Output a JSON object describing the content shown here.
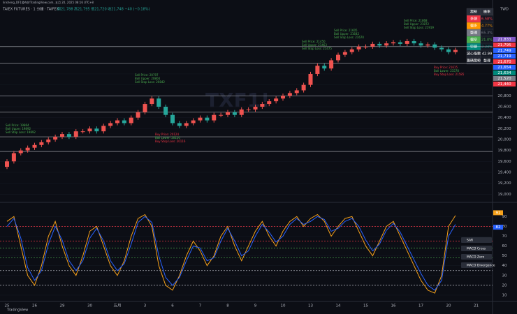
{
  "header": {
    "publisher": "linsheng_DF1發布於TradingView.com, 五月 20, 2025 08:16 UTC+8",
    "symbol": "TAIEX FUTURES · 1 分鐘 · TAIFEX",
    "ohlc": "開21,788 高21,795 低21,720 收21,748 −40 (−0.18%)",
    "currency": "TWD",
    "watermark": "TXF1!",
    "footer": "TradingView"
  },
  "table": {
    "header": [
      "趨勢",
      "機率"
    ],
    "rows": [
      [
        "多頭",
        "6.58%"
      ],
      [
        "偏多",
        "4.77%"
      ],
      [
        "整理",
        "65.3%"
      ],
      [
        "偏空",
        "21.0%"
      ],
      [
        "空頭",
        "2.24%"
      ],
      [
        "波心指數",
        "42.99"
      ],
      [
        "籌碼趨勢",
        "整理"
      ]
    ]
  },
  "chart_data": [
    {
      "type": "candlestick",
      "up_color": "#ef5350",
      "down_color": "#26a69a",
      "categories": [
        "25",
        null,
        null,
        null,
        "26",
        null,
        null,
        null,
        "29",
        null,
        null,
        null,
        "30",
        null,
        null,
        null,
        "五月",
        null,
        null,
        null,
        "3",
        null,
        null,
        null,
        "6",
        null,
        null,
        null,
        "7",
        null,
        null,
        null,
        "8",
        null,
        null,
        null,
        "9",
        null,
        null,
        null,
        "10",
        null,
        null,
        null,
        "13",
        null,
        null,
        null,
        "14",
        null,
        null,
        null,
        "15",
        null,
        null,
        null,
        "16",
        null,
        null,
        null,
        "17",
        null,
        null,
        null,
        "20",
        null,
        null,
        null,
        "21"
      ],
      "open": [
        19500,
        19600,
        19750,
        19800,
        19850,
        19900,
        19950,
        20000,
        20050,
        20100,
        20050,
        20150,
        20150,
        20200,
        20150,
        20250,
        20300,
        20350,
        20300,
        20400,
        20500,
        20650,
        20750,
        20600,
        20450,
        20300,
        20250,
        20300,
        20350,
        20400,
        20350,
        20450,
        20450,
        20500,
        20450,
        20550,
        20550,
        20600,
        20650,
        20700,
        20750,
        20800,
        20850,
        20900,
        21000,
        21200,
        21350,
        21300,
        21450,
        21550,
        21600,
        21650,
        21700,
        21700,
        21750,
        21720,
        21760,
        21780,
        21750,
        21800,
        21760,
        21720,
        21740,
        21680,
        21650,
        21600,
        null,
        null,
        null
      ],
      "high": [
        19640,
        19790,
        19840,
        19890,
        19940,
        19990,
        20040,
        20090,
        20140,
        20140,
        20190,
        20190,
        20240,
        20240,
        20290,
        20340,
        20390,
        20390,
        20440,
        20540,
        20690,
        20790,
        20790,
        20640,
        20490,
        20340,
        20340,
        20390,
        20440,
        20440,
        20490,
        20490,
        20540,
        20540,
        20590,
        20590,
        20640,
        20690,
        20740,
        20790,
        20840,
        20890,
        20940,
        21040,
        21240,
        21390,
        21390,
        21490,
        21590,
        21640,
        21690,
        21740,
        21740,
        21790,
        21790,
        21800,
        21820,
        21820,
        21840,
        21840,
        21800,
        21780,
        21780,
        21720,
        21690,
        21680,
        null,
        null,
        null
      ],
      "low": [
        19460,
        19560,
        19710,
        19760,
        19810,
        19860,
        19910,
        19960,
        20010,
        20010,
        20010,
        20110,
        20110,
        20110,
        20110,
        20210,
        20260,
        20260,
        20260,
        20360,
        20460,
        20610,
        20560,
        20410,
        20260,
        20210,
        20210,
        20260,
        20310,
        20310,
        20310,
        20410,
        20410,
        20410,
        20410,
        20510,
        20510,
        20560,
        20610,
        20660,
        20710,
        20760,
        20810,
        20860,
        20960,
        21160,
        21260,
        21260,
        21410,
        21510,
        21560,
        21610,
        21660,
        21660,
        21680,
        21680,
        21720,
        21710,
        21710,
        21720,
        21680,
        21680,
        21640,
        21610,
        21560,
        21560,
        null,
        null,
        null
      ],
      "close": [
        19600,
        19750,
        19800,
        19850,
        19900,
        19950,
        20000,
        20050,
        20100,
        20050,
        20150,
        20150,
        20200,
        20150,
        20250,
        20300,
        20350,
        20300,
        20400,
        20500,
        20650,
        20750,
        20600,
        20450,
        20300,
        20250,
        20300,
        20350,
        20400,
        20350,
        20450,
        20450,
        20500,
        20450,
        20550,
        20550,
        20600,
        20650,
        20700,
        20750,
        20800,
        20850,
        20900,
        21000,
        21200,
        21350,
        21300,
        21450,
        21550,
        21600,
        21650,
        21700,
        21700,
        21750,
        21720,
        21760,
        21780,
        21750,
        21800,
        21760,
        21720,
        21740,
        21680,
        21650,
        21600,
        21640,
        null,
        null,
        null
      ],
      "ylim": [
        18850,
        22400
      ],
      "yticks": [
        {
          "value": 19000,
          "label": "19,000"
        },
        {
          "value": 19200,
          "label": "19,200"
        },
        {
          "value": 19400,
          "label": "19,400"
        },
        {
          "value": 19600,
          "label": "19,600"
        },
        {
          "value": 19800,
          "label": "19,800"
        },
        {
          "value": 20000,
          "label": "20,000"
        },
        {
          "value": 20200,
          "label": "20,200"
        },
        {
          "value": 20400,
          "label": "20,400"
        },
        {
          "value": 20600,
          "label": "20,600"
        },
        {
          "value": 20800,
          "label": "20,800"
        },
        {
          "value": 21000,
          "label": "21,000"
        },
        {
          "value": 21200,
          "label": "21,200"
        },
        {
          "value": 21400,
          "label": "21,400"
        }
      ],
      "levels": [
        21700,
        21400,
        20800,
        20500,
        20050,
        19780
      ],
      "price_tags": [
        {
          "value": 21833,
          "label": "21,833",
          "color": "#7e57c2"
        },
        {
          "value": 21795,
          "label": "21,795",
          "color": "#f23645"
        },
        {
          "value": 21749,
          "label": "21,749",
          "color": "#2962ff"
        },
        {
          "value": 21719,
          "label": "21,719",
          "color": "#2962ff"
        },
        {
          "value": 21670,
          "label": "21,670",
          "color": "#f23645"
        },
        {
          "value": 21654,
          "label": "21,654",
          "color": "#2962ff"
        },
        {
          "value": 21634,
          "label": "21,634",
          "color": "#00897b"
        },
        {
          "value": 21520,
          "label": "21,520",
          "color": "#787b86"
        },
        {
          "value": 21440,
          "label": "21,440",
          "color": "#f23645"
        }
      ],
      "annotations": [
        [
          "Sell Price: 19864",
          "Boll Upper: 19892",
          "Sell Stop Loss: 19892"
        ],
        [
          "Sell Price: 20797",
          "Boll Upper: 20804",
          "Sell Stop Loss: 20842"
        ],
        [
          "Buy Price: 20124",
          "Boll Lower: 20120",
          "Buy Stop Loss: 20116"
        ],
        [
          "Sell Price: 21450",
          "Sell Upper: 21463",
          "Sell Stop Loss: 21475"
        ],
        [
          "Sell Price: 21605",
          "Boll Upper: 21642",
          "Sell Stop Loss: 21670"
        ],
        [
          "Sell Price: 21868",
          "Boll Upper: 21872",
          "Sell Stop Loss: 21919"
        ],
        [
          "Buy Price: 21615",
          "Boll Lower: 21578",
          "Buy Stop Loss: 21585"
        ]
      ]
    },
    {
      "type": "line",
      "ylim": [
        5,
        103
      ],
      "yticks": [
        10,
        20,
        30,
        40,
        50,
        60,
        70,
        80,
        90
      ],
      "series": [
        {
          "color": "#f7a21b",
          "values": [
            85,
            90,
            60,
            30,
            20,
            40,
            70,
            85,
            60,
            40,
            30,
            50,
            75,
            80,
            60,
            40,
            30,
            45,
            70,
            88,
            92,
            80,
            40,
            20,
            15,
            30,
            50,
            65,
            55,
            40,
            50,
            70,
            80,
            60,
            45,
            60,
            75,
            85,
            70,
            60,
            75,
            85,
            90,
            80,
            88,
            92,
            85,
            70,
            80,
            88,
            90,
            75,
            60,
            50,
            65,
            80,
            85,
            70,
            55,
            40,
            25,
            15,
            12,
            30,
            80,
            91,
            null,
            null,
            null
          ]
        },
        {
          "color": "#2962ff",
          "values": [
            80,
            88,
            68,
            38,
            25,
            35,
            62,
            80,
            66,
            45,
            35,
            45,
            68,
            78,
            65,
            45,
            35,
            42,
            62,
            84,
            90,
            84,
            50,
            28,
            20,
            28,
            45,
            60,
            58,
            45,
            48,
            65,
            78,
            65,
            50,
            55,
            70,
            82,
            74,
            64,
            70,
            82,
            88,
            82,
            85,
            90,
            87,
            75,
            78,
            85,
            88,
            80,
            66,
            55,
            62,
            76,
            83,
            74,
            60,
            46,
            32,
            20,
            15,
            25,
            70,
            82,
            null,
            null,
            null
          ]
        }
      ],
      "ref_lines": [
        {
          "value": 80,
          "color": "#f23645"
        },
        {
          "value": 65,
          "color": "#f23645"
        },
        {
          "value": 58,
          "color": "#4caf50"
        },
        {
          "value": 48,
          "color": "#4caf50"
        },
        {
          "value": 35,
          "color": "#b2b5be"
        },
        {
          "value": 20,
          "color": "#b2b5be"
        }
      ],
      "markers": [
        "SAR",
        "MACD Cross",
        "MACD Zero",
        "MACD Divergence"
      ]
    }
  ]
}
